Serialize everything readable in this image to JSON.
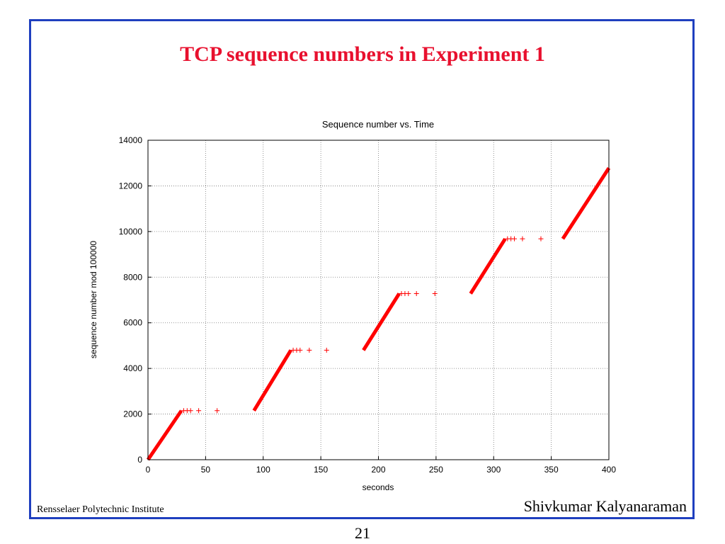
{
  "slide": {
    "title": "TCP sequence numbers in Experiment 1",
    "footer_left": "Rensselaer Polytechnic Institute",
    "footer_right": "Shivkumar Kalyanaraman",
    "page_number": "21"
  },
  "colors": {
    "frame": "#1f3fbf",
    "title": "#e8102e",
    "series": "#ff0000"
  },
  "chart_data": {
    "type": "scatter",
    "title": "Sequence number vs. Time",
    "xlabel": "seconds",
    "ylabel": "sequence number mod 100000",
    "xlim": [
      0,
      400
    ],
    "ylim": [
      0,
      14000
    ],
    "xticks": [
      0,
      50,
      100,
      150,
      200,
      250,
      300,
      350,
      400
    ],
    "yticks": [
      0,
      2000,
      4000,
      6000,
      8000,
      10000,
      12000,
      14000
    ],
    "grid": true,
    "marker": "+",
    "series": [
      {
        "segments": [
          {
            "x": [
              0,
              29
            ],
            "y": [
              0,
              2150
            ]
          },
          {
            "x": [
              92,
              124
            ],
            "y": [
              2150,
              4800
            ]
          },
          {
            "x": [
              187,
              218
            ],
            "y": [
              4800,
              7280
            ]
          },
          {
            "x": [
              280,
              310
            ],
            "y": [
              7280,
              9680
            ]
          },
          {
            "x": [
              360,
              400
            ],
            "y": [
              9680,
              12780
            ]
          }
        ],
        "isolated_points": [
          {
            "x": 31,
            "y": 2150
          },
          {
            "x": 34,
            "y": 2150
          },
          {
            "x": 37,
            "y": 2150
          },
          {
            "x": 44,
            "y": 2150
          },
          {
            "x": 60,
            "y": 2150
          },
          {
            "x": 126,
            "y": 4800
          },
          {
            "x": 129,
            "y": 4800
          },
          {
            "x": 132,
            "y": 4800
          },
          {
            "x": 140,
            "y": 4800
          },
          {
            "x": 155,
            "y": 4800
          },
          {
            "x": 220,
            "y": 7280
          },
          {
            "x": 223,
            "y": 7280
          },
          {
            "x": 226,
            "y": 7280
          },
          {
            "x": 233,
            "y": 7280
          },
          {
            "x": 249,
            "y": 7280
          },
          {
            "x": 312,
            "y": 9680
          },
          {
            "x": 315,
            "y": 9680
          },
          {
            "x": 318,
            "y": 9680
          },
          {
            "x": 325,
            "y": 9680
          },
          {
            "x": 341,
            "y": 9680
          }
        ]
      }
    ]
  }
}
